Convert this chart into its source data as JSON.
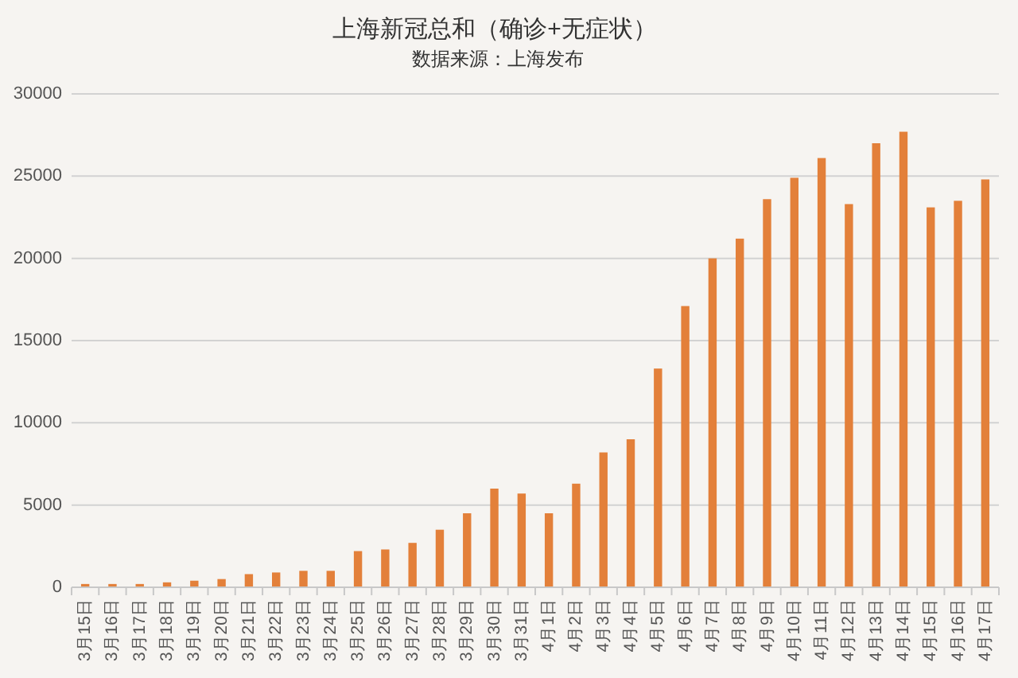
{
  "chart_data": {
    "type": "bar",
    "title": "上海新冠总和（确诊+无症状）",
    "subtitle": "数据来源：上海发布",
    "categories": [
      "3月15日",
      "3月16日",
      "3月17日",
      "3月18日",
      "3月19日",
      "3月20日",
      "3月21日",
      "3月22日",
      "3月23日",
      "3月24日",
      "3月25日",
      "3月26日",
      "3月27日",
      "3月28日",
      "3月29日",
      "3月30日",
      "3月31日",
      "4月1日",
      "4月2日",
      "4月3日",
      "4月4日",
      "4月5日",
      "4月6日",
      "4月7日",
      "4月8日",
      "4月9日",
      "4月10日",
      "4月11日",
      "4月12日",
      "4月13日",
      "4月14日",
      "4月15日",
      "4月16日",
      "4月17日"
    ],
    "values": [
      200,
      200,
      200,
      300,
      400,
      500,
      800,
      900,
      1000,
      1000,
      2200,
      2300,
      2700,
      3500,
      4500,
      6000,
      5700,
      4500,
      6300,
      8200,
      9000,
      13300,
      17100,
      20000,
      21200,
      23600,
      24900,
      26100,
      23300,
      27000,
      27700,
      23100,
      23500,
      24800
    ],
    "color": "#e3803a",
    "ylim": [
      0,
      30000
    ],
    "yticks": [
      0,
      5000,
      10000,
      15000,
      20000,
      25000,
      30000
    ],
    "grid": "y"
  }
}
